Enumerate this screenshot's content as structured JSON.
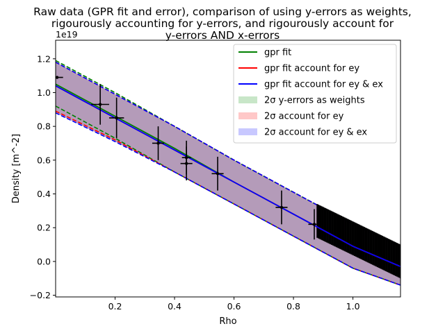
{
  "chart_data": {
    "type": "line",
    "title_lines": [
      "Raw data (GPR fit and error), comparison of using y-errors as weights,",
      "rigourously accounting for y-errors, and rigourously account for",
      "y-errors AND x-errors"
    ],
    "xlabel": "Rho",
    "ylabel": "Density [m^-2]",
    "y_offset_label": "1e19",
    "xlim": [
      0.0,
      1.16
    ],
    "ylim": [
      -0.21,
      1.31
    ],
    "x_ticks": [
      0.2,
      0.4,
      0.6,
      0.8,
      1.0
    ],
    "x_tick_labels": [
      "0.2",
      "0.4",
      "0.6",
      "0.8",
      "1.0"
    ],
    "y_ticks": [
      -0.2,
      0.0,
      0.2,
      0.4,
      0.6,
      0.8,
      1.0,
      1.2
    ],
    "y_tick_labels": [
      "−0.2",
      "0.0",
      "0.2",
      "0.4",
      "0.6",
      "0.8",
      "1.0",
      "1.2"
    ],
    "grid": false,
    "legend_position": "upper-right",
    "colors": {
      "gpr_fit": "#008000",
      "gpr_fit_ey": "#ff0000",
      "gpr_fit_ey_ex": "#0000ff",
      "band_weights": "#c8e6c8",
      "band_ey": "#ffc8c8",
      "band_ey_ex": "#c8c8ff",
      "band_overlap": "#a98fb4",
      "data": "#000000"
    },
    "legend": [
      {
        "label": "gpr fit",
        "kind": "line",
        "color": "#008000"
      },
      {
        "label": "gpr fit account for ey",
        "kind": "line",
        "color": "#ff0000"
      },
      {
        "label": "gpr fit account for ey & ex",
        "kind": "line",
        "color": "#0000ff"
      },
      {
        "label": "2σ y-errors as weights",
        "kind": "patch",
        "color": "#c8e6c8"
      },
      {
        "label": "2σ account for ey",
        "kind": "patch",
        "color": "#ffc8c8"
      },
      {
        "label": "2σ account for ey & ex",
        "kind": "patch",
        "color": "#c8c8ff"
      }
    ],
    "series": [
      {
        "name": "gpr fit",
        "x": [
          0.0,
          0.2,
          0.4,
          0.6,
          0.8,
          1.0,
          1.16
        ],
        "y": [
          1.05,
          0.86,
          0.67,
          0.47,
          0.28,
          0.09,
          -0.03
        ]
      },
      {
        "name": "gpr fit account for ey",
        "x": [
          0.0,
          0.2,
          0.4,
          0.6,
          0.8,
          1.0,
          1.16
        ],
        "y": [
          1.04,
          0.85,
          0.66,
          0.47,
          0.28,
          0.09,
          -0.03
        ]
      },
      {
        "name": "gpr fit account for ey & ex",
        "x": [
          0.0,
          0.2,
          0.4,
          0.6,
          0.8,
          1.0,
          1.16
        ],
        "y": [
          1.04,
          0.85,
          0.66,
          0.47,
          0.28,
          0.09,
          -0.03
        ]
      }
    ],
    "bands": [
      {
        "name": "2σ y-errors as weights",
        "x": [
          0.0,
          0.2,
          0.4,
          0.6,
          0.8,
          1.0,
          1.16
        ],
        "upper": [
          1.19,
          1.0,
          0.8,
          0.6,
          0.41,
          0.22,
          0.09
        ],
        "lower": [
          0.92,
          0.73,
          0.53,
          0.34,
          0.15,
          -0.04,
          -0.14
        ]
      },
      {
        "name": "2σ account for ey",
        "x": [
          0.0,
          0.2,
          0.4,
          0.6,
          0.8,
          1.0,
          1.16
        ],
        "upper": [
          1.18,
          0.99,
          0.8,
          0.6,
          0.41,
          0.22,
          0.09
        ],
        "lower": [
          0.89,
          0.72,
          0.53,
          0.34,
          0.15,
          -0.04,
          -0.14
        ]
      },
      {
        "name": "2σ account for ey & ex",
        "x": [
          0.0,
          0.2,
          0.4,
          0.6,
          0.8,
          1.0,
          1.16
        ],
        "upper": [
          1.18,
          0.99,
          0.8,
          0.6,
          0.41,
          0.22,
          0.09
        ],
        "lower": [
          0.88,
          0.71,
          0.53,
          0.34,
          0.15,
          -0.04,
          -0.14
        ]
      }
    ],
    "data_points": [
      {
        "x": 0.005,
        "y": 1.09,
        "xerr": 0.02,
        "yerr": 0.0
      },
      {
        "x": 0.15,
        "y": 0.93,
        "xerr": 0.03,
        "yerr": 0.12
      },
      {
        "x": 0.205,
        "y": 0.85,
        "xerr": 0.025,
        "yerr": 0.12
      },
      {
        "x": 0.345,
        "y": 0.7,
        "xerr": 0.02,
        "yerr": 0.1
      },
      {
        "x": 0.44,
        "y": 0.615,
        "xerr": 0.015,
        "yerr": 0.1
      },
      {
        "x": 0.44,
        "y": 0.58,
        "xerr": 0.02,
        "yerr": 0.1
      },
      {
        "x": 0.545,
        "y": 0.52,
        "xerr": 0.02,
        "yerr": 0.1
      },
      {
        "x": 0.76,
        "y": 0.32,
        "xerr": 0.02,
        "yerr": 0.1
      },
      {
        "x": 0.87,
        "y": 0.22,
        "xerr": 0.02,
        "yerr": 0.09
      }
    ],
    "dense_region": {
      "x_start": 0.88,
      "x_end": 1.16,
      "count": 70,
      "y_start": 0.24,
      "y_end": 0.0,
      "yerr": 0.1
    }
  }
}
